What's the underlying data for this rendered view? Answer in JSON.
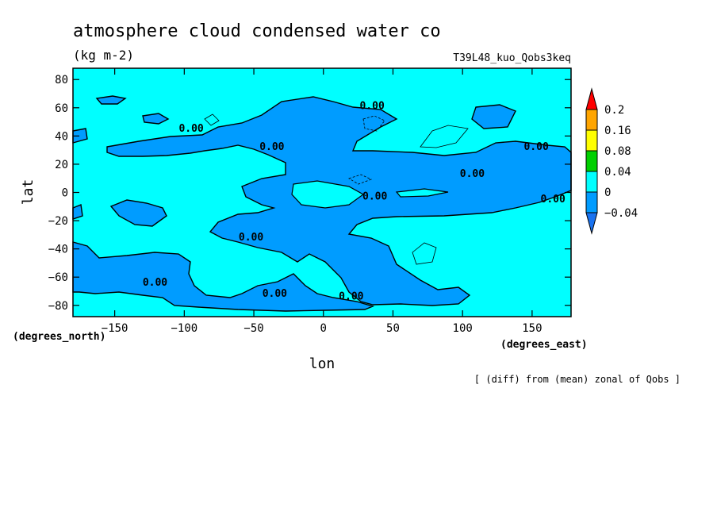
{
  "chart_data": {
    "type": "heatmap",
    "title": "atmosphere cloud condensed water co",
    "units": "(kg m-2)",
    "run_label": "T39L48_kuo_Qobs3keq",
    "xlabel": "lon",
    "ylabel": "lat",
    "x_unit_label": "(degrees_east)",
    "y_unit_label": "(degrees_north)",
    "footnote": "[ (diff) from (mean) zonal of Qobs ]",
    "xlim": [
      -180,
      178
    ],
    "ylim": [
      -88,
      88
    ],
    "x_ticks": [
      -150,
      -100,
      -50,
      0,
      50,
      100,
      150
    ],
    "y_ticks": [
      -80,
      -60,
      -40,
      -20,
      0,
      20,
      40,
      60,
      80
    ],
    "x_tick_labels": [
      "−150",
      "−100",
      "−50",
      "0",
      "50",
      "100",
      "150"
    ],
    "y_tick_labels": [
      "−80",
      "−60",
      "−40",
      "−20",
      "0",
      "20",
      "40",
      "60",
      "80"
    ],
    "contour_labels": [
      {
        "text": "0.00",
        "lon": 35,
        "lat": 59
      },
      {
        "text": "0.00",
        "lon": -95,
        "lat": 43
      },
      {
        "text": "0.00",
        "lon": -37,
        "lat": 30
      },
      {
        "text": "0.00",
        "lon": 153,
        "lat": 30
      },
      {
        "text": "0.00",
        "lon": 107,
        "lat": 11
      },
      {
        "text": "0.00",
        "lon": 37,
        "lat": -5
      },
      {
        "text": "0.00",
        "lon": 165,
        "lat": -7
      },
      {
        "text": "0.00",
        "lon": -52,
        "lat": -34
      },
      {
        "text": "0.00",
        "lon": -121,
        "lat": -66
      },
      {
        "text": "0.00",
        "lon": -35,
        "lat": -74
      },
      {
        "text": "0.00",
        "lon": 20,
        "lat": -76
      }
    ],
    "colorbar": {
      "levels": [
        -0.04,
        0,
        0.04,
        0.08,
        0.16,
        0.2
      ],
      "labels": [
        "−0.04",
        "0",
        "0.04",
        "0.08",
        "0.16",
        "0.2"
      ],
      "colors": [
        "#1a73f0",
        "#00ffff",
        "#00d000",
        "#ffff00",
        "#ffa500",
        "#ff0000"
      ],
      "segments": [
        "#1a73f0",
        "#009cff",
        "#00ffff",
        "#00d000",
        "#ffff00",
        "#ffa500",
        "#ff0000"
      ]
    },
    "fill_colors": {
      "positive": "#00ffff",
      "negative": "#009cff"
    }
  }
}
